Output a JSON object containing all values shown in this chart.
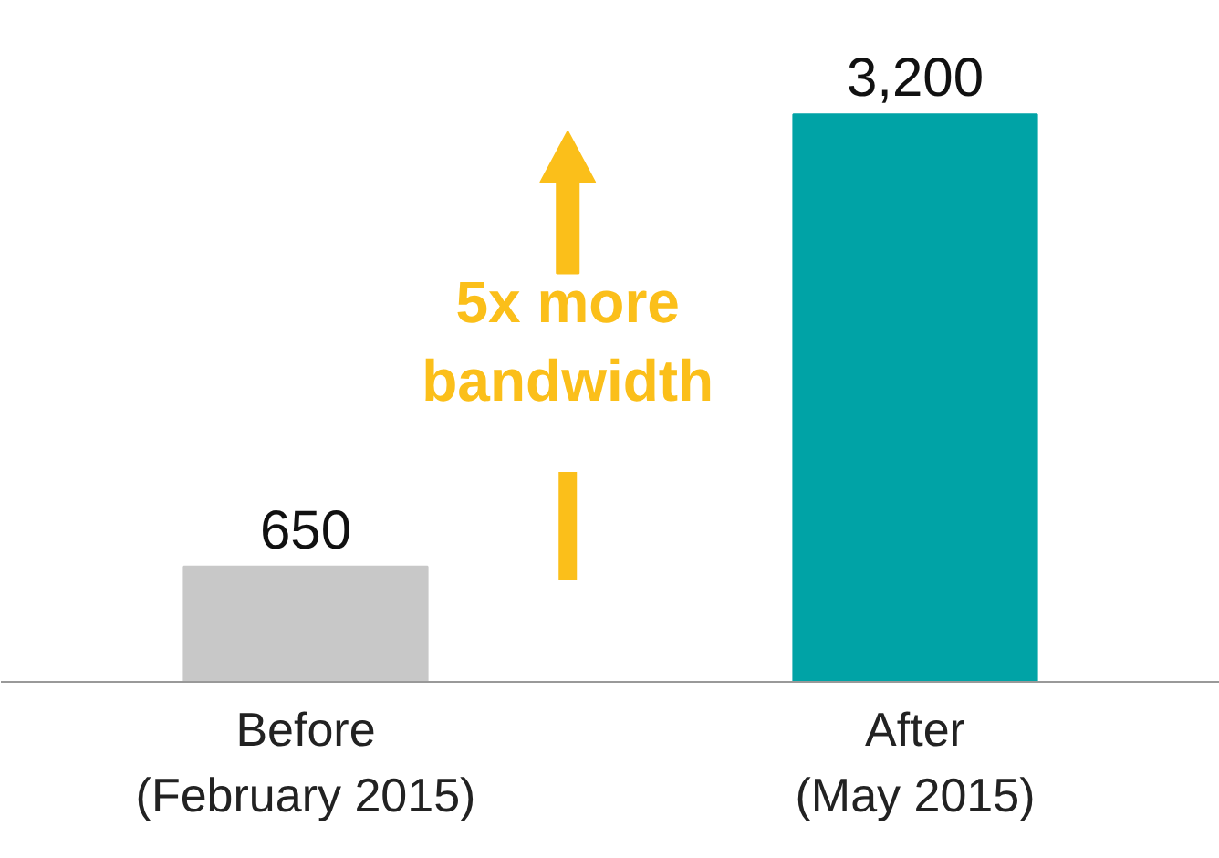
{
  "chart_data": {
    "type": "bar",
    "categories": [
      "Before\n(February 2015)",
      "After\n(May 2015)"
    ],
    "values": [
      650,
      3200
    ],
    "value_labels": [
      "650",
      "3,200"
    ],
    "colors": [
      "#c8c8c8",
      "#00a3a6"
    ],
    "annotations": [
      "5x more bandwidth"
    ]
  }
}
